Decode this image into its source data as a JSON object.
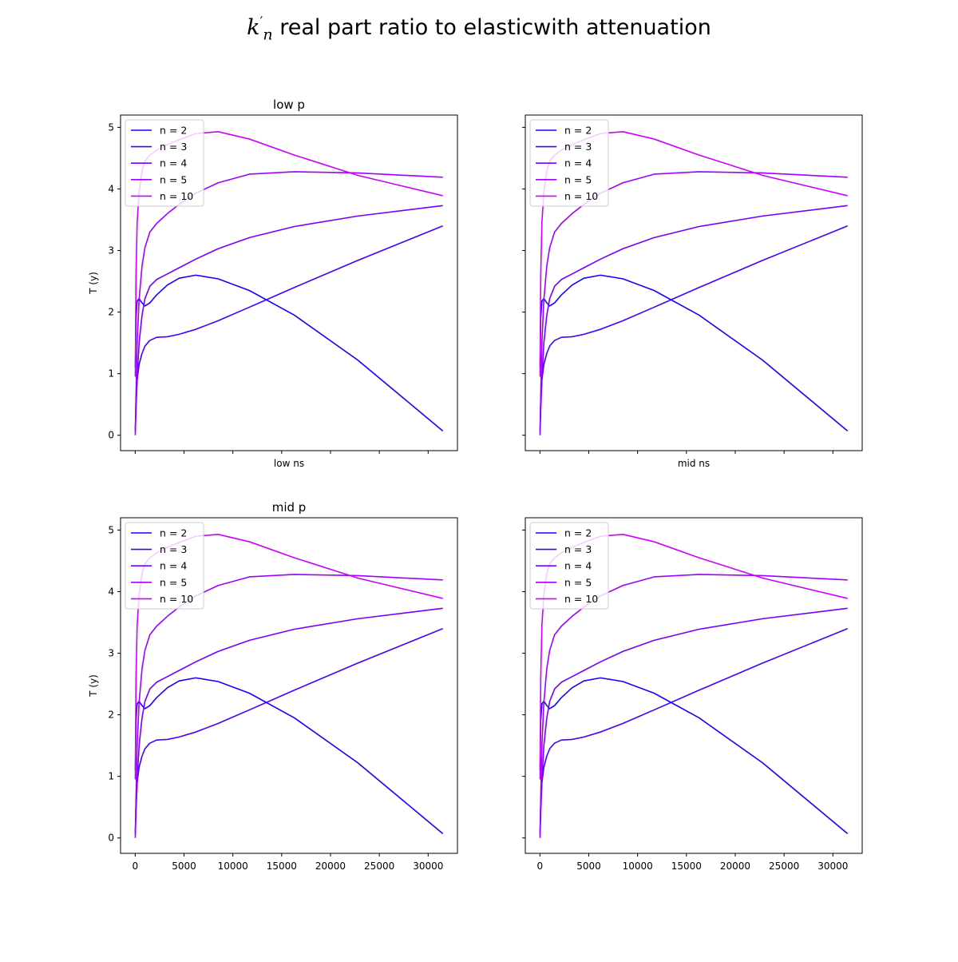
{
  "figure": {
    "suptitle_symbol_base": "k",
    "suptitle_symbol_sub": "n",
    "suptitle_symbol_sup": "′",
    "suptitle_text": " real part ratio to elasticwith attenuation"
  },
  "chart_data": [
    {
      "type": "line",
      "title": "low p",
      "xlabel": "low ns",
      "ylabel": "T (y)",
      "xlim": [
        -1500,
        33000
      ],
      "ylim": [
        -0.25,
        5.2
      ],
      "xticks": [
        0,
        5000,
        10000,
        15000,
        20000,
        25000,
        30000
      ],
      "yticks": [
        0,
        1,
        2,
        3,
        4,
        5
      ],
      "show_xticklabels": false,
      "show_yticklabels": true,
      "grid": false,
      "legend_position": "upper-left",
      "series": [
        {
          "name": "n = 2",
          "color": "#1a00ff",
          "x": [
            10,
            80,
            200,
            400,
            700,
            1000,
            1500,
            2200,
            3300,
            4500,
            6200,
            8500,
            11700,
            16300,
            22800,
            31500
          ],
          "y": [
            1.1,
            1.9,
            2.18,
            2.22,
            2.15,
            2.1,
            2.15,
            2.28,
            2.44,
            2.55,
            2.6,
            2.54,
            2.35,
            1.95,
            1.22,
            0.07
          ]
        },
        {
          "name": "n = 3",
          "color": "#4400ff",
          "x": [
            10,
            80,
            200,
            400,
            700,
            1000,
            1500,
            2200,
            3300,
            4500,
            6200,
            8500,
            11700,
            16300,
            22800,
            31500
          ],
          "y": [
            0.1,
            0.55,
            0.9,
            1.15,
            1.33,
            1.45,
            1.54,
            1.59,
            1.6,
            1.64,
            1.72,
            1.86,
            2.08,
            2.4,
            2.84,
            3.4
          ]
        },
        {
          "name": "n = 4",
          "color": "#7300ff",
          "x": [
            10,
            80,
            200,
            400,
            700,
            1000,
            1500,
            2200,
            3300,
            4500,
            6200,
            8500,
            11700,
            16300,
            22800,
            31500
          ],
          "y": [
            0.05,
            0.4,
            0.9,
            1.5,
            1.95,
            2.22,
            2.42,
            2.53,
            2.62,
            2.72,
            2.86,
            3.03,
            3.21,
            3.39,
            3.56,
            3.73
          ]
        },
        {
          "name": "n = 5",
          "color": "#a000ff",
          "x": [
            10,
            80,
            200,
            400,
            700,
            1000,
            1500,
            2200,
            3300,
            4500,
            6200,
            8500,
            11700,
            16300,
            22800,
            31500
          ],
          "y": [
            0.0,
            0.65,
            1.5,
            2.2,
            2.75,
            3.05,
            3.3,
            3.44,
            3.6,
            3.75,
            3.93,
            4.1,
            4.24,
            4.28,
            4.26,
            4.19
          ]
        },
        {
          "name": "n = 10",
          "color": "#cc00ff",
          "x": [
            10,
            80,
            200,
            400,
            700,
            1000,
            1500,
            2200,
            3300,
            4500,
            6200,
            8500,
            11700,
            16300,
            22800,
            31500
          ],
          "y": [
            0.95,
            2.6,
            3.45,
            3.95,
            4.3,
            4.45,
            4.55,
            4.63,
            4.72,
            4.8,
            4.9,
            4.93,
            4.81,
            4.55,
            4.22,
            3.89
          ]
        }
      ]
    },
    {
      "type": "line",
      "title": "",
      "xlabel": "mid ns",
      "ylabel": "",
      "xlim": [
        -1500,
        33000
      ],
      "ylim": [
        -0.25,
        5.2
      ],
      "xticks": [
        0,
        5000,
        10000,
        15000,
        20000,
        25000,
        30000
      ],
      "yticks": [
        0,
        1,
        2,
        3,
        4,
        5
      ],
      "show_xticklabels": false,
      "show_yticklabels": false,
      "grid": false,
      "legend_position": "upper-left",
      "series": [
        {
          "name": "n = 2",
          "color": "#1a00ff",
          "x": [
            10,
            80,
            200,
            400,
            700,
            1000,
            1500,
            2200,
            3300,
            4500,
            6200,
            8500,
            11700,
            16300,
            22800,
            31500
          ],
          "y": [
            1.1,
            1.9,
            2.18,
            2.22,
            2.15,
            2.1,
            2.15,
            2.28,
            2.44,
            2.55,
            2.6,
            2.54,
            2.35,
            1.95,
            1.22,
            0.07
          ]
        },
        {
          "name": "n = 3",
          "color": "#4400ff",
          "x": [
            10,
            80,
            200,
            400,
            700,
            1000,
            1500,
            2200,
            3300,
            4500,
            6200,
            8500,
            11700,
            16300,
            22800,
            31500
          ],
          "y": [
            0.1,
            0.55,
            0.9,
            1.15,
            1.33,
            1.45,
            1.54,
            1.59,
            1.6,
            1.64,
            1.72,
            1.86,
            2.08,
            2.4,
            2.84,
            3.4
          ]
        },
        {
          "name": "n = 4",
          "color": "#7300ff",
          "x": [
            10,
            80,
            200,
            400,
            700,
            1000,
            1500,
            2200,
            3300,
            4500,
            6200,
            8500,
            11700,
            16300,
            22800,
            31500
          ],
          "y": [
            0.05,
            0.4,
            0.9,
            1.5,
            1.95,
            2.22,
            2.42,
            2.53,
            2.62,
            2.72,
            2.86,
            3.03,
            3.21,
            3.39,
            3.56,
            3.73
          ]
        },
        {
          "name": "n = 5",
          "color": "#a000ff",
          "x": [
            10,
            80,
            200,
            400,
            700,
            1000,
            1500,
            2200,
            3300,
            4500,
            6200,
            8500,
            11700,
            16300,
            22800,
            31500
          ],
          "y": [
            0.0,
            0.65,
            1.5,
            2.2,
            2.75,
            3.05,
            3.3,
            3.44,
            3.6,
            3.75,
            3.93,
            4.1,
            4.24,
            4.28,
            4.26,
            4.19
          ]
        },
        {
          "name": "n = 10",
          "color": "#cc00ff",
          "x": [
            10,
            80,
            200,
            400,
            700,
            1000,
            1500,
            2200,
            3300,
            4500,
            6200,
            8500,
            11700,
            16300,
            22800,
            31500
          ],
          "y": [
            0.95,
            2.6,
            3.45,
            3.95,
            4.3,
            4.45,
            4.55,
            4.63,
            4.72,
            4.8,
            4.9,
            4.93,
            4.81,
            4.55,
            4.22,
            3.89
          ]
        }
      ]
    },
    {
      "type": "line",
      "title": "mid p",
      "xlabel": "",
      "ylabel": "T (y)",
      "xlim": [
        -1500,
        33000
      ],
      "ylim": [
        -0.25,
        5.2
      ],
      "xticks": [
        0,
        5000,
        10000,
        15000,
        20000,
        25000,
        30000
      ],
      "yticks": [
        0,
        1,
        2,
        3,
        4,
        5
      ],
      "show_xticklabels": true,
      "show_yticklabels": true,
      "grid": false,
      "legend_position": "upper-left",
      "series": [
        {
          "name": "n = 2",
          "color": "#1a00ff",
          "x": [
            10,
            80,
            200,
            400,
            700,
            1000,
            1500,
            2200,
            3300,
            4500,
            6200,
            8500,
            11700,
            16300,
            22800,
            31500
          ],
          "y": [
            1.1,
            1.9,
            2.18,
            2.22,
            2.15,
            2.1,
            2.15,
            2.28,
            2.44,
            2.55,
            2.6,
            2.54,
            2.35,
            1.95,
            1.22,
            0.07
          ]
        },
        {
          "name": "n = 3",
          "color": "#4400ff",
          "x": [
            10,
            80,
            200,
            400,
            700,
            1000,
            1500,
            2200,
            3300,
            4500,
            6200,
            8500,
            11700,
            16300,
            22800,
            31500
          ],
          "y": [
            0.1,
            0.55,
            0.9,
            1.15,
            1.33,
            1.45,
            1.54,
            1.59,
            1.6,
            1.64,
            1.72,
            1.86,
            2.08,
            2.4,
            2.84,
            3.4
          ]
        },
        {
          "name": "n = 4",
          "color": "#7300ff",
          "x": [
            10,
            80,
            200,
            400,
            700,
            1000,
            1500,
            2200,
            3300,
            4500,
            6200,
            8500,
            11700,
            16300,
            22800,
            31500
          ],
          "y": [
            0.05,
            0.4,
            0.9,
            1.5,
            1.95,
            2.22,
            2.42,
            2.53,
            2.62,
            2.72,
            2.86,
            3.03,
            3.21,
            3.39,
            3.56,
            3.73
          ]
        },
        {
          "name": "n = 5",
          "color": "#a000ff",
          "x": [
            10,
            80,
            200,
            400,
            700,
            1000,
            1500,
            2200,
            3300,
            4500,
            6200,
            8500,
            11700,
            16300,
            22800,
            31500
          ],
          "y": [
            0.0,
            0.65,
            1.5,
            2.2,
            2.75,
            3.05,
            3.3,
            3.44,
            3.6,
            3.75,
            3.93,
            4.1,
            4.24,
            4.28,
            4.26,
            4.19
          ]
        },
        {
          "name": "n = 10",
          "color": "#cc00ff",
          "x": [
            10,
            80,
            200,
            400,
            700,
            1000,
            1500,
            2200,
            3300,
            4500,
            6200,
            8500,
            11700,
            16300,
            22800,
            31500
          ],
          "y": [
            0.95,
            2.6,
            3.45,
            3.95,
            4.3,
            4.45,
            4.55,
            4.63,
            4.72,
            4.8,
            4.9,
            4.93,
            4.81,
            4.55,
            4.22,
            3.89
          ]
        }
      ]
    },
    {
      "type": "line",
      "title": "",
      "xlabel": "",
      "ylabel": "",
      "xlim": [
        -1500,
        33000
      ],
      "ylim": [
        -0.25,
        5.2
      ],
      "xticks": [
        0,
        5000,
        10000,
        15000,
        20000,
        25000,
        30000
      ],
      "yticks": [
        0,
        1,
        2,
        3,
        4,
        5
      ],
      "show_xticklabels": true,
      "show_yticklabels": false,
      "grid": false,
      "legend_position": "upper-left",
      "series": [
        {
          "name": "n = 2",
          "color": "#1a00ff",
          "x": [
            10,
            80,
            200,
            400,
            700,
            1000,
            1500,
            2200,
            3300,
            4500,
            6200,
            8500,
            11700,
            16300,
            22800,
            31500
          ],
          "y": [
            1.1,
            1.9,
            2.18,
            2.22,
            2.15,
            2.1,
            2.15,
            2.28,
            2.44,
            2.55,
            2.6,
            2.54,
            2.35,
            1.95,
            1.22,
            0.07
          ]
        },
        {
          "name": "n = 3",
          "color": "#4400ff",
          "x": [
            10,
            80,
            200,
            400,
            700,
            1000,
            1500,
            2200,
            3300,
            4500,
            6200,
            8500,
            11700,
            16300,
            22800,
            31500
          ],
          "y": [
            0.1,
            0.55,
            0.9,
            1.15,
            1.33,
            1.45,
            1.54,
            1.59,
            1.6,
            1.64,
            1.72,
            1.86,
            2.08,
            2.4,
            2.84,
            3.4
          ]
        },
        {
          "name": "n = 4",
          "color": "#7300ff",
          "x": [
            10,
            80,
            200,
            400,
            700,
            1000,
            1500,
            2200,
            3300,
            4500,
            6200,
            8500,
            11700,
            16300,
            22800,
            31500
          ],
          "y": [
            0.05,
            0.4,
            0.9,
            1.5,
            1.95,
            2.22,
            2.42,
            2.53,
            2.62,
            2.72,
            2.86,
            3.03,
            3.21,
            3.39,
            3.56,
            3.73
          ]
        },
        {
          "name": "n = 5",
          "color": "#a000ff",
          "x": [
            10,
            80,
            200,
            400,
            700,
            1000,
            1500,
            2200,
            3300,
            4500,
            6200,
            8500,
            11700,
            16300,
            22800,
            31500
          ],
          "y": [
            0.0,
            0.65,
            1.5,
            2.2,
            2.75,
            3.05,
            3.3,
            3.44,
            3.6,
            3.75,
            3.93,
            4.1,
            4.24,
            4.28,
            4.26,
            4.19
          ]
        },
        {
          "name": "n = 10",
          "color": "#cc00ff",
          "x": [
            10,
            80,
            200,
            400,
            700,
            1000,
            1500,
            2200,
            3300,
            4500,
            6200,
            8500,
            11700,
            16300,
            22800,
            31500
          ],
          "y": [
            0.95,
            2.6,
            3.45,
            3.95,
            4.3,
            4.45,
            4.55,
            4.63,
            4.72,
            4.8,
            4.9,
            4.93,
            4.81,
            4.55,
            4.22,
            3.89
          ]
        }
      ]
    }
  ]
}
